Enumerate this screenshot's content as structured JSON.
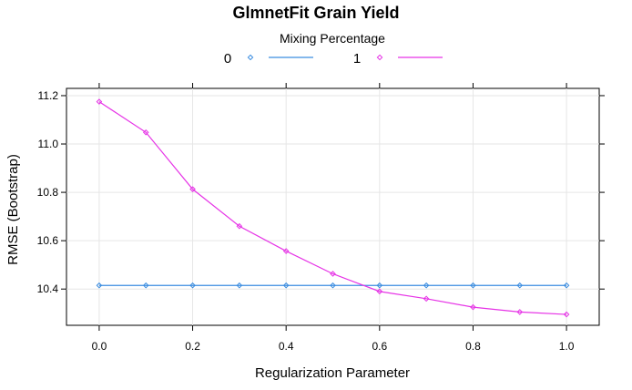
{
  "chart_data": {
    "type": "line",
    "title": "GlmnetFit Grain Yield",
    "xlabel": "Regularization Parameter",
    "ylabel": "RMSE (Bootstrap)",
    "legend_title": "Mixing Percentage",
    "legend_position": "top",
    "grid": true,
    "xlim": [
      -0.07,
      1.07
    ],
    "ylim": [
      10.25,
      11.23
    ],
    "x_ticks": [
      "0.0",
      "0.2",
      "0.4",
      "0.6",
      "0.8",
      "1.0"
    ],
    "y_ticks": [
      "10.4",
      "10.6",
      "10.8",
      "11.0",
      "11.2"
    ],
    "x": [
      0.0,
      0.1,
      0.2,
      0.3,
      0.4,
      0.5,
      0.6,
      0.7,
      0.8,
      0.9,
      1.0
    ],
    "series": [
      {
        "name": "0",
        "color": "#3b8de0",
        "values": [
          10.415,
          10.415,
          10.415,
          10.415,
          10.415,
          10.415,
          10.415,
          10.415,
          10.415,
          10.415,
          10.415
        ]
      },
      {
        "name": "1",
        "color": "#e633e6",
        "values": [
          11.175,
          11.048,
          10.813,
          10.66,
          10.557,
          10.463,
          10.39,
          10.36,
          10.325,
          10.305,
          10.295
        ]
      }
    ]
  }
}
